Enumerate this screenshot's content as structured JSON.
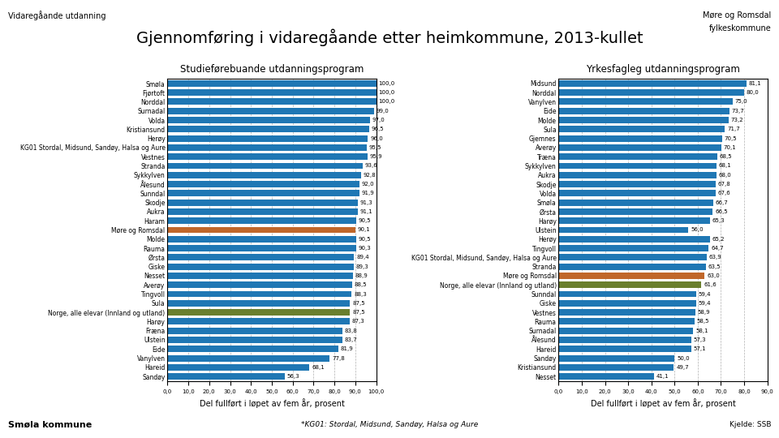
{
  "title": "Gjennomføring i vidaregåande etter heimkommune, 2013-kullet",
  "subtitle": "Vidaregåande utdanning",
  "annotations": [
    "Smøla kommune",
    "*KG01: Stordal, Midsund, Sandøy, Halsa og Aure",
    "Kjelde: SSB",
    "Møre og Romsdal",
    "fylkeskommune"
  ],
  "chart_data": [
    {
      "type": "bar",
      "orientation": "horizontal",
      "title": "Studieførebuande utdanningsprogram",
      "xlabel": "Del fullført i løpet av fem år, prosent",
      "categories": [
        "Smøla",
        "Fjørtoft",
        "Norddal",
        "Surnadal",
        "Volda",
        "Kristiansund",
        "Herøy",
        "KG01 Stordal, Midsund, Sandøy, Halsa og Aure",
        "Vestnes",
        "Stranda",
        "Sykkylven",
        "Ålesund",
        "Sunndal",
        "Skodje",
        "Aukra",
        "Haram",
        "Møre og Romsdal",
        "Molde",
        "Rauma",
        "Ørsta",
        "Giske",
        "Nesset",
        "Averøy",
        "Tingvoll",
        "Sula",
        "Norge, alle elevar (Innland og utland)",
        "Harøy",
        "Fræna",
        "Ulstein",
        "Eide",
        "Vanylven",
        "Hareid",
        "Sandøy"
      ],
      "values": [
        100.0,
        100.0,
        100.0,
        99.0,
        97.0,
        96.5,
        96.0,
        95.5,
        95.9,
        93.6,
        92.8,
        92.0,
        91.9,
        91.3,
        91.1,
        90.5,
        90.1,
        90.5,
        90.3,
        89.4,
        89.3,
        88.9,
        88.5,
        88.3,
        87.5,
        87.5,
        87.3,
        83.8,
        83.7,
        81.9,
        77.8,
        68.1,
        56.3
      ],
      "value_labels": [
        "100,0",
        "100,0",
        "100,0",
        "99,0",
        "97,0",
        "96,5",
        "96,0",
        "95,5",
        "95,9",
        "93,6",
        "92,8",
        "92,0",
        "91,9",
        "91,3",
        "91,1",
        "90,5",
        "90,1",
        "90,5",
        "90,3",
        "89,4",
        "89,3",
        "88,9",
        "88,5",
        "88,3",
        "87,5",
        "87,5",
        "87,3",
        "83,8",
        "83,7",
        "81,9",
        "77,8",
        "68,1",
        "56,3"
      ],
      "colors": [
        "#1f77b4",
        "#1f77b4",
        "#1f77b4",
        "#1f77b4",
        "#1f77b4",
        "#1f77b4",
        "#1f77b4",
        "#1f77b4",
        "#1f77b4",
        "#1f77b4",
        "#1f77b4",
        "#1f77b4",
        "#1f77b4",
        "#1f77b4",
        "#1f77b4",
        "#1f77b4",
        "#c0672a",
        "#1f77b4",
        "#1f77b4",
        "#1f77b4",
        "#1f77b4",
        "#1f77b4",
        "#1f77b4",
        "#1f77b4",
        "#1f77b4",
        "#6a7f2e",
        "#1f77b4",
        "#1f77b4",
        "#1f77b4",
        "#1f77b4",
        "#1f77b4",
        "#1f77b4",
        "#1f77b4"
      ],
      "xlim": [
        0,
        100
      ],
      "xticks": [
        {
          "value": 0,
          "label": "0,0"
        },
        {
          "value": 10,
          "label": "10,0"
        },
        {
          "value": 20,
          "label": "20,0"
        },
        {
          "value": 30,
          "label": "30,0"
        },
        {
          "value": 40,
          "label": "40,0"
        },
        {
          "value": 50,
          "label": "50,0"
        },
        {
          "value": 60,
          "label": "60,0"
        },
        {
          "value": 70,
          "label": "70,0"
        },
        {
          "value": 80,
          "label": "80,0"
        },
        {
          "value": 90,
          "label": "90,0"
        },
        {
          "value": 100,
          "label": "100,0"
        }
      ],
      "grid": true,
      "data_labels": true
    },
    {
      "type": "bar",
      "orientation": "horizontal",
      "title": "Yrkesfagleg utdanningsprogram",
      "xlabel": "Del fullført i løpet av fem år, prosent",
      "categories": [
        "Midsund",
        "Norddal",
        "Vanylven",
        "Eide",
        "Molde",
        "Sula",
        "Gjemnes",
        "Averøy",
        "Træna",
        "Sykkylven",
        "Aukra",
        "Skodje",
        "Volda",
        "Smøla",
        "Ørsta",
        "Harøy",
        "Ulstein",
        "Herøy",
        "Tingvoll",
        "KG01 Stordal, Midsund, Sandøy, Halsa og Aure",
        "Stranda",
        "Møre og Romsdal",
        "Norge, alle elevar (Innland og utland)",
        "Sunndal",
        "Giske",
        "Vestnes",
        "Rauma",
        "Surnadal",
        "Ålesund",
        "Hareid",
        "Sandøy",
        "Kristiansund",
        "Nesset"
      ],
      "values": [
        81.1,
        80.0,
        75.0,
        73.7,
        73.2,
        71.7,
        70.5,
        70.1,
        68.5,
        68.1,
        68.0,
        67.8,
        67.6,
        66.7,
        66.5,
        65.3,
        56.0,
        65.2,
        64.7,
        63.9,
        63.5,
        63.0,
        61.6,
        59.4,
        59.4,
        58.9,
        58.5,
        58.1,
        57.3,
        57.1,
        50.0,
        49.7,
        41.1
      ],
      "value_labels": [
        "81,1",
        "80,0",
        "75,0",
        "73,7",
        "73,2",
        "71,7",
        "70,5",
        "70,1",
        "68,5",
        "68,1",
        "68,0",
        "67,8",
        "67,6",
        "66,7",
        "66,5",
        "65,3",
        "56,0",
        "65,2",
        "64,7",
        "63,9",
        "63,5",
        "63,0",
        "61,6",
        "59,4",
        "59,4",
        "58,9",
        "58,5",
        "58,1",
        "57,3",
        "57,1",
        "50,0",
        "49,7",
        "41,1"
      ],
      "colors": [
        "#1f77b4",
        "#1f77b4",
        "#1f77b4",
        "#1f77b4",
        "#1f77b4",
        "#1f77b4",
        "#1f77b4",
        "#1f77b4",
        "#1f77b4",
        "#1f77b4",
        "#1f77b4",
        "#1f77b4",
        "#1f77b4",
        "#1f77b4",
        "#1f77b4",
        "#1f77b4",
        "#1f77b4",
        "#1f77b4",
        "#1f77b4",
        "#1f77b4",
        "#1f77b4",
        "#c0672a",
        "#6a7f2e",
        "#1f77b4",
        "#1f77b4",
        "#1f77b4",
        "#1f77b4",
        "#1f77b4",
        "#1f77b4",
        "#1f77b4",
        "#1f77b4",
        "#1f77b4",
        "#1f77b4"
      ],
      "xlim": [
        0,
        90
      ],
      "xticks": [
        {
          "value": 0,
          "label": "0,0"
        },
        {
          "value": 10,
          "label": "10,0"
        },
        {
          "value": 20,
          "label": "20,0"
        },
        {
          "value": 30,
          "label": "30,0"
        },
        {
          "value": 40,
          "label": "40,0"
        },
        {
          "value": 50,
          "label": "50,0"
        },
        {
          "value": 60,
          "label": "60,0"
        },
        {
          "value": 70,
          "label": "70,0"
        },
        {
          "value": 80,
          "label": "80,0"
        },
        {
          "value": 90,
          "label": "90,0"
        }
      ],
      "grid": true,
      "data_labels": true
    }
  ]
}
